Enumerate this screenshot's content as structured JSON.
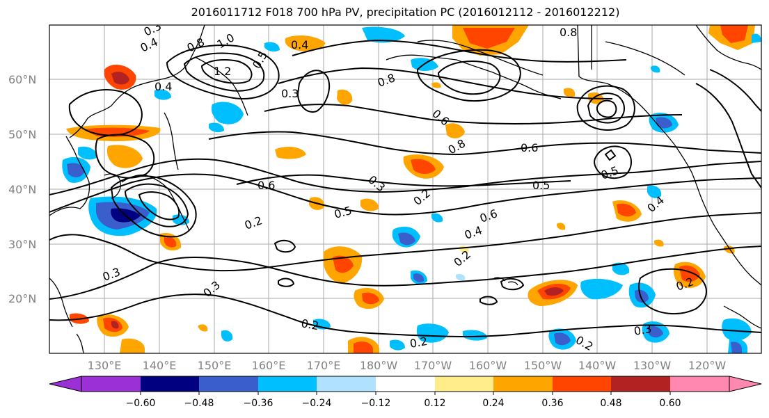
{
  "title": "2016011712 F018 700 hPa PV, precipitation PC (2016012112 - 2016012212)",
  "map": {
    "lat_labels": [
      "60°N",
      "50°N",
      "40°N",
      "30°N",
      "20°N"
    ],
    "lon_labels": [
      "130°E",
      "140°E",
      "150°E",
      "160°E",
      "170°E",
      "180°W",
      "170°W",
      "160°W",
      "150°W",
      "140°W",
      "130°W",
      "120°W"
    ],
    "contour_labels": [
      "0.3",
      "0.4",
      "0.8",
      "1.0",
      "1.2",
      "0.5",
      "0.4",
      "0.3",
      "0.8",
      "0.8",
      "0.4",
      "0.6",
      "0.8",
      "0.6",
      "0.6",
      "0.5",
      "0.5",
      "0.3",
      "0.2",
      "0.5",
      "0.6",
      "0.4",
      "0.2",
      "0.2",
      "0.3",
      "0.3",
      "0.2",
      "0.2",
      "0.2",
      "0.3",
      "0.2",
      "0.4"
    ]
  },
  "colorbar": {
    "tick_labels": [
      "−0.60",
      "−0.48",
      "−0.36",
      "−0.24",
      "−0.12",
      "0.12",
      "0.24",
      "0.36",
      "0.48",
      "0.60"
    ],
    "colors": [
      "#9b30d6",
      "#000080",
      "#3a5fcd",
      "#00bfff",
      "#b0e2ff",
      "#ffffff",
      "#ffec8b",
      "#ffa500",
      "#ff4500",
      "#b22222",
      "#ff88b0"
    ]
  }
}
